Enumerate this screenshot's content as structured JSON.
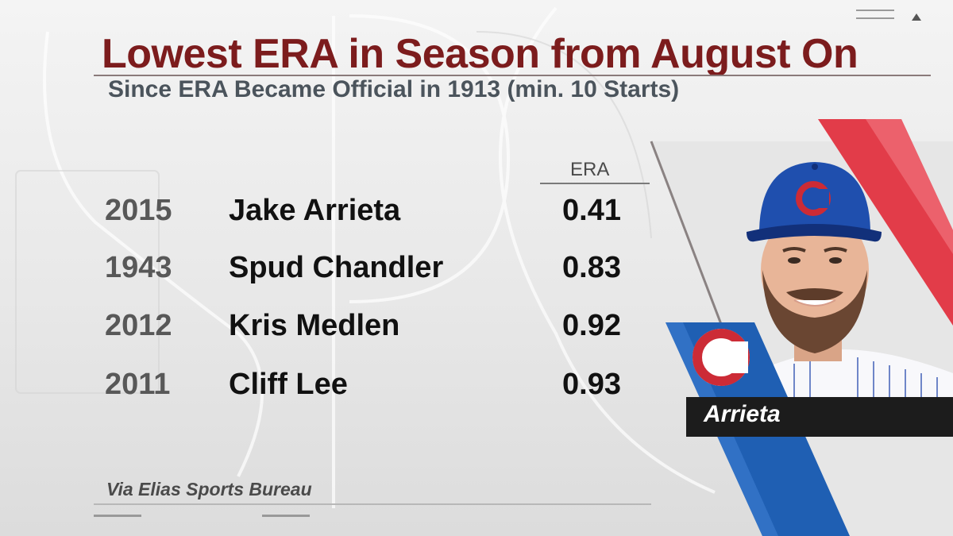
{
  "header": {
    "title": "Lowest ERA in Season from August On",
    "subtitle": "Since ERA Became Official in 1913 (min. 10 Starts)"
  },
  "table": {
    "column_header": "ERA",
    "rows": [
      {
        "year": "2015",
        "player": "Jake Arrieta",
        "era": "0.41"
      },
      {
        "year": "1943",
        "player": "Spud Chandler",
        "era": "0.83"
      },
      {
        "year": "2012",
        "player": "Kris Medlen",
        "era": "0.92"
      },
      {
        "year": "2011",
        "player": "Cliff Lee",
        "era": "0.93"
      }
    ]
  },
  "source": "Via Elias Sports Bureau",
  "player_card": {
    "name": "Arrieta",
    "team_logo": "cubs-c-logo-icon"
  },
  "colors": {
    "title": "#7c1c1d",
    "subtitle": "#4b545c",
    "cubs_blue": "#1f5fb3",
    "cubs_red": "#cc2b36",
    "accent_red": "#e23c49"
  }
}
